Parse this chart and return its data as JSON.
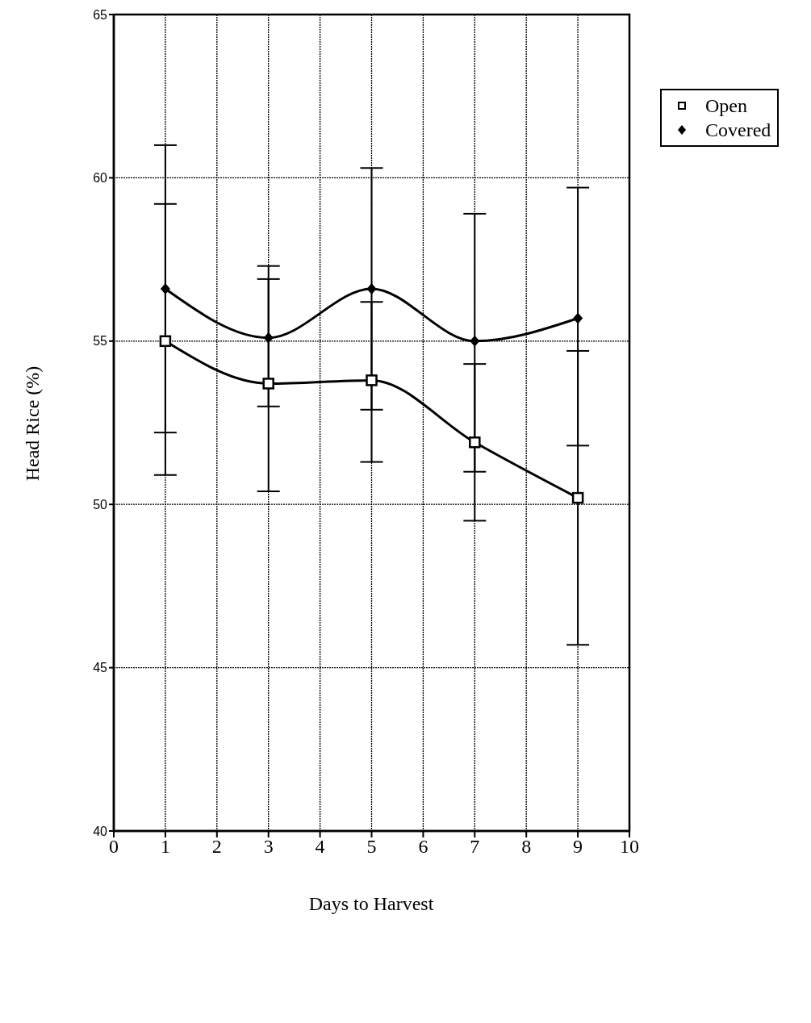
{
  "chart_data": {
    "type": "line",
    "xlabel": "Days to Harvest",
    "ylabel": "Head Rice (%)",
    "x": [
      1,
      3,
      5,
      7,
      9
    ],
    "series": [
      {
        "name": "Open",
        "color": "#000000",
        "marker": "square",
        "values": [
          55.0,
          53.7,
          53.8,
          51.9,
          50.2
        ],
        "errors": [
          [
            50.9,
            59.2
          ],
          [
            50.4,
            56.9
          ],
          [
            51.3,
            56.2
          ],
          [
            49.5,
            54.3
          ],
          [
            45.7,
            54.7
          ]
        ]
      },
      {
        "name": "Covered",
        "color": "#000000",
        "marker": "diamond",
        "values": [
          56.6,
          55.1,
          56.6,
          55.0,
          55.7
        ],
        "errors": [
          [
            52.2,
            61.0
          ],
          [
            53.0,
            57.3
          ],
          [
            52.9,
            60.3
          ],
          [
            51.0,
            58.9
          ],
          [
            51.8,
            59.7
          ]
        ]
      }
    ],
    "xlim": [
      0,
      10
    ],
    "xticks": [
      0,
      1,
      2,
      3,
      4,
      5,
      6,
      7,
      8,
      9,
      10
    ],
    "ylim": [
      40,
      65
    ],
    "yticks": [
      40,
      45,
      50,
      55,
      60,
      65
    ],
    "grid": true,
    "legend": "top right",
    "line_style": "solid"
  }
}
